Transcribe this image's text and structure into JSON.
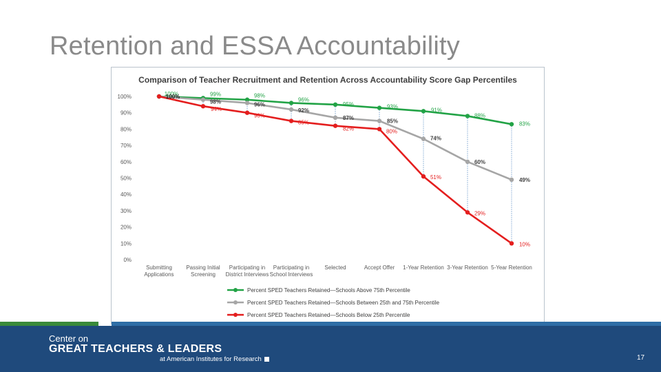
{
  "slide": {
    "title": "Retention and ESSA Accountability",
    "page_number": "17"
  },
  "footer": {
    "line1": "Center on",
    "line2": "GREAT TEACHERS & LEADERS",
    "line3": "at American Institutes for Research"
  },
  "colors": {
    "above_75": "#22a346",
    "between_25_75": "#a6a6a6",
    "below_25": "#e41e1e",
    "footer_bg": "#1f4a7c"
  },
  "chart_data": {
    "type": "line",
    "title": "Comparison of Teacher Recruitment and Retention Across Accountability Score Gap Percentiles",
    "categories": [
      "Submitting Applications",
      "Passing Initial Screening",
      "Participating in District Interviews",
      "Participating in School Interviews",
      "Selected",
      "Accept Offer",
      "1-Year Retention",
      "3-Year Retention",
      "5-Year Retention"
    ],
    "y_ticks": [
      "0%",
      "10%",
      "20%",
      "30%",
      "40%",
      "50%",
      "60%",
      "70%",
      "80%",
      "90%",
      "100%"
    ],
    "ylim": [
      0,
      100
    ],
    "grid": false,
    "legend_position": "bottom",
    "series": [
      {
        "name": "Percent SPED Teachers Retained—Schools Above 75th Percentile",
        "values": [
          100,
          99,
          98,
          96,
          95,
          93,
          91,
          88,
          83
        ],
        "labels": [
          "100%",
          "99%",
          "98%",
          "96%",
          "95%",
          "93%",
          "91%",
          "88%",
          "83%"
        ],
        "bold": [
          false,
          false,
          false,
          false,
          false,
          false,
          false,
          false,
          false
        ]
      },
      {
        "name": "Percent SPED Teachers Retained—Schools Between 25th and 75th Percentile",
        "values": [
          100,
          98,
          96,
          92,
          87,
          85,
          74,
          60,
          49
        ],
        "labels": [
          "100%",
          "98%",
          "96%",
          "92%",
          "87%",
          "85%",
          "74%",
          "60%",
          "49%"
        ],
        "bold": [
          true,
          true,
          true,
          true,
          true,
          true,
          true,
          true,
          true
        ]
      },
      {
        "name": "Percent SPED Teachers Retained—Schools Below 25th Percentile",
        "values": [
          100,
          94,
          90,
          85,
          82,
          80,
          51,
          29,
          10
        ],
        "labels": [
          "100%",
          "94%",
          "90%",
          "85%",
          "82%",
          "80%",
          "51%",
          "29%",
          "10%"
        ],
        "bold": [
          true,
          false,
          false,
          false,
          false,
          false,
          false,
          false,
          false
        ]
      }
    ]
  }
}
